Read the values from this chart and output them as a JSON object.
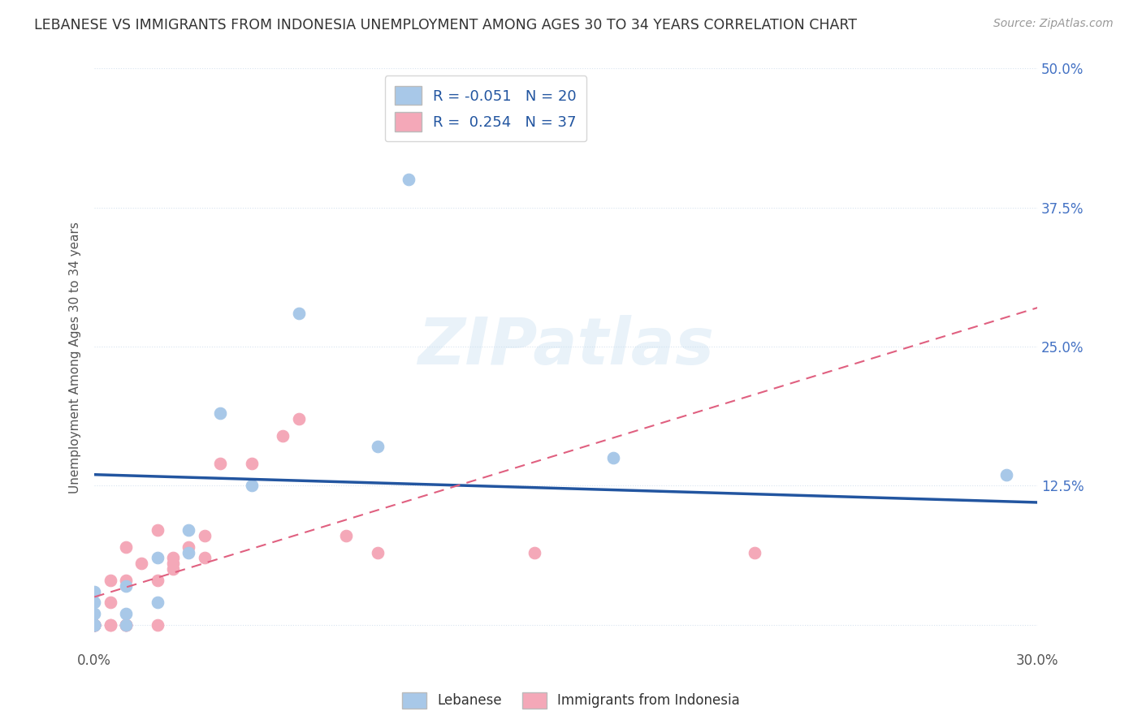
{
  "title": "LEBANESE VS IMMIGRANTS FROM INDONESIA UNEMPLOYMENT AMONG AGES 30 TO 34 YEARS CORRELATION CHART",
  "source": "Source: ZipAtlas.com",
  "ylabel": "Unemployment Among Ages 30 to 34 years",
  "xlim": [
    0.0,
    0.3
  ],
  "ylim": [
    -0.02,
    0.5
  ],
  "xticks": [
    0.0,
    0.05,
    0.1,
    0.15,
    0.2,
    0.25,
    0.3
  ],
  "xtick_labels": [
    "0.0%",
    "",
    "",
    "",
    "",
    "",
    "30.0%"
  ],
  "yticks": [
    0.0,
    0.125,
    0.25,
    0.375,
    0.5
  ],
  "ytick_labels_right": [
    "",
    "12.5%",
    "25.0%",
    "37.5%",
    "50.0%"
  ],
  "background_color": "#ffffff",
  "plot_bg_color": "#ffffff",
  "grid_color": "#d8e4f0",
  "lebanese_R": -0.051,
  "lebanese_N": 20,
  "indonesia_R": 0.254,
  "indonesia_N": 37,
  "lebanese_color": "#a8c8e8",
  "indonesia_color": "#f4a8b8",
  "lebanese_line_color": "#2255a0",
  "indonesia_line_color": "#e06080",
  "leb_line_x0": 0.0,
  "leb_line_y0": 0.135,
  "leb_line_x1": 0.3,
  "leb_line_y1": 0.11,
  "ind_line_x0": 0.0,
  "ind_line_y0": 0.025,
  "ind_line_x1": 0.3,
  "ind_line_y1": 0.285,
  "lebanese_x": [
    0.0,
    0.0,
    0.0,
    0.0,
    0.0,
    0.0,
    0.01,
    0.01,
    0.01,
    0.02,
    0.02,
    0.03,
    0.03,
    0.04,
    0.05,
    0.065,
    0.09,
    0.1,
    0.165,
    0.29
  ],
  "lebanese_y": [
    0.0,
    0.0,
    0.0,
    0.01,
    0.02,
    0.03,
    0.0,
    0.01,
    0.035,
    0.02,
    0.06,
    0.065,
    0.085,
    0.19,
    0.125,
    0.28,
    0.16,
    0.4,
    0.15,
    0.135
  ],
  "indonesia_x": [
    0.0,
    0.0,
    0.0,
    0.0,
    0.0,
    0.0,
    0.0,
    0.0,
    0.0,
    0.0,
    0.005,
    0.005,
    0.005,
    0.005,
    0.01,
    0.01,
    0.01,
    0.01,
    0.01,
    0.015,
    0.02,
    0.02,
    0.02,
    0.025,
    0.025,
    0.025,
    0.03,
    0.035,
    0.035,
    0.04,
    0.05,
    0.06,
    0.065,
    0.08,
    0.09,
    0.14,
    0.21
  ],
  "indonesia_y": [
    0.0,
    0.0,
    0.0,
    0.0,
    0.0,
    0.0,
    0.0,
    0.0,
    0.0,
    0.0,
    0.0,
    0.0,
    0.02,
    0.04,
    0.0,
    0.0,
    0.0,
    0.04,
    0.07,
    0.055,
    0.0,
    0.04,
    0.085,
    0.05,
    0.055,
    0.06,
    0.07,
    0.06,
    0.08,
    0.145,
    0.145,
    0.17,
    0.185,
    0.08,
    0.065,
    0.065,
    0.065
  ]
}
